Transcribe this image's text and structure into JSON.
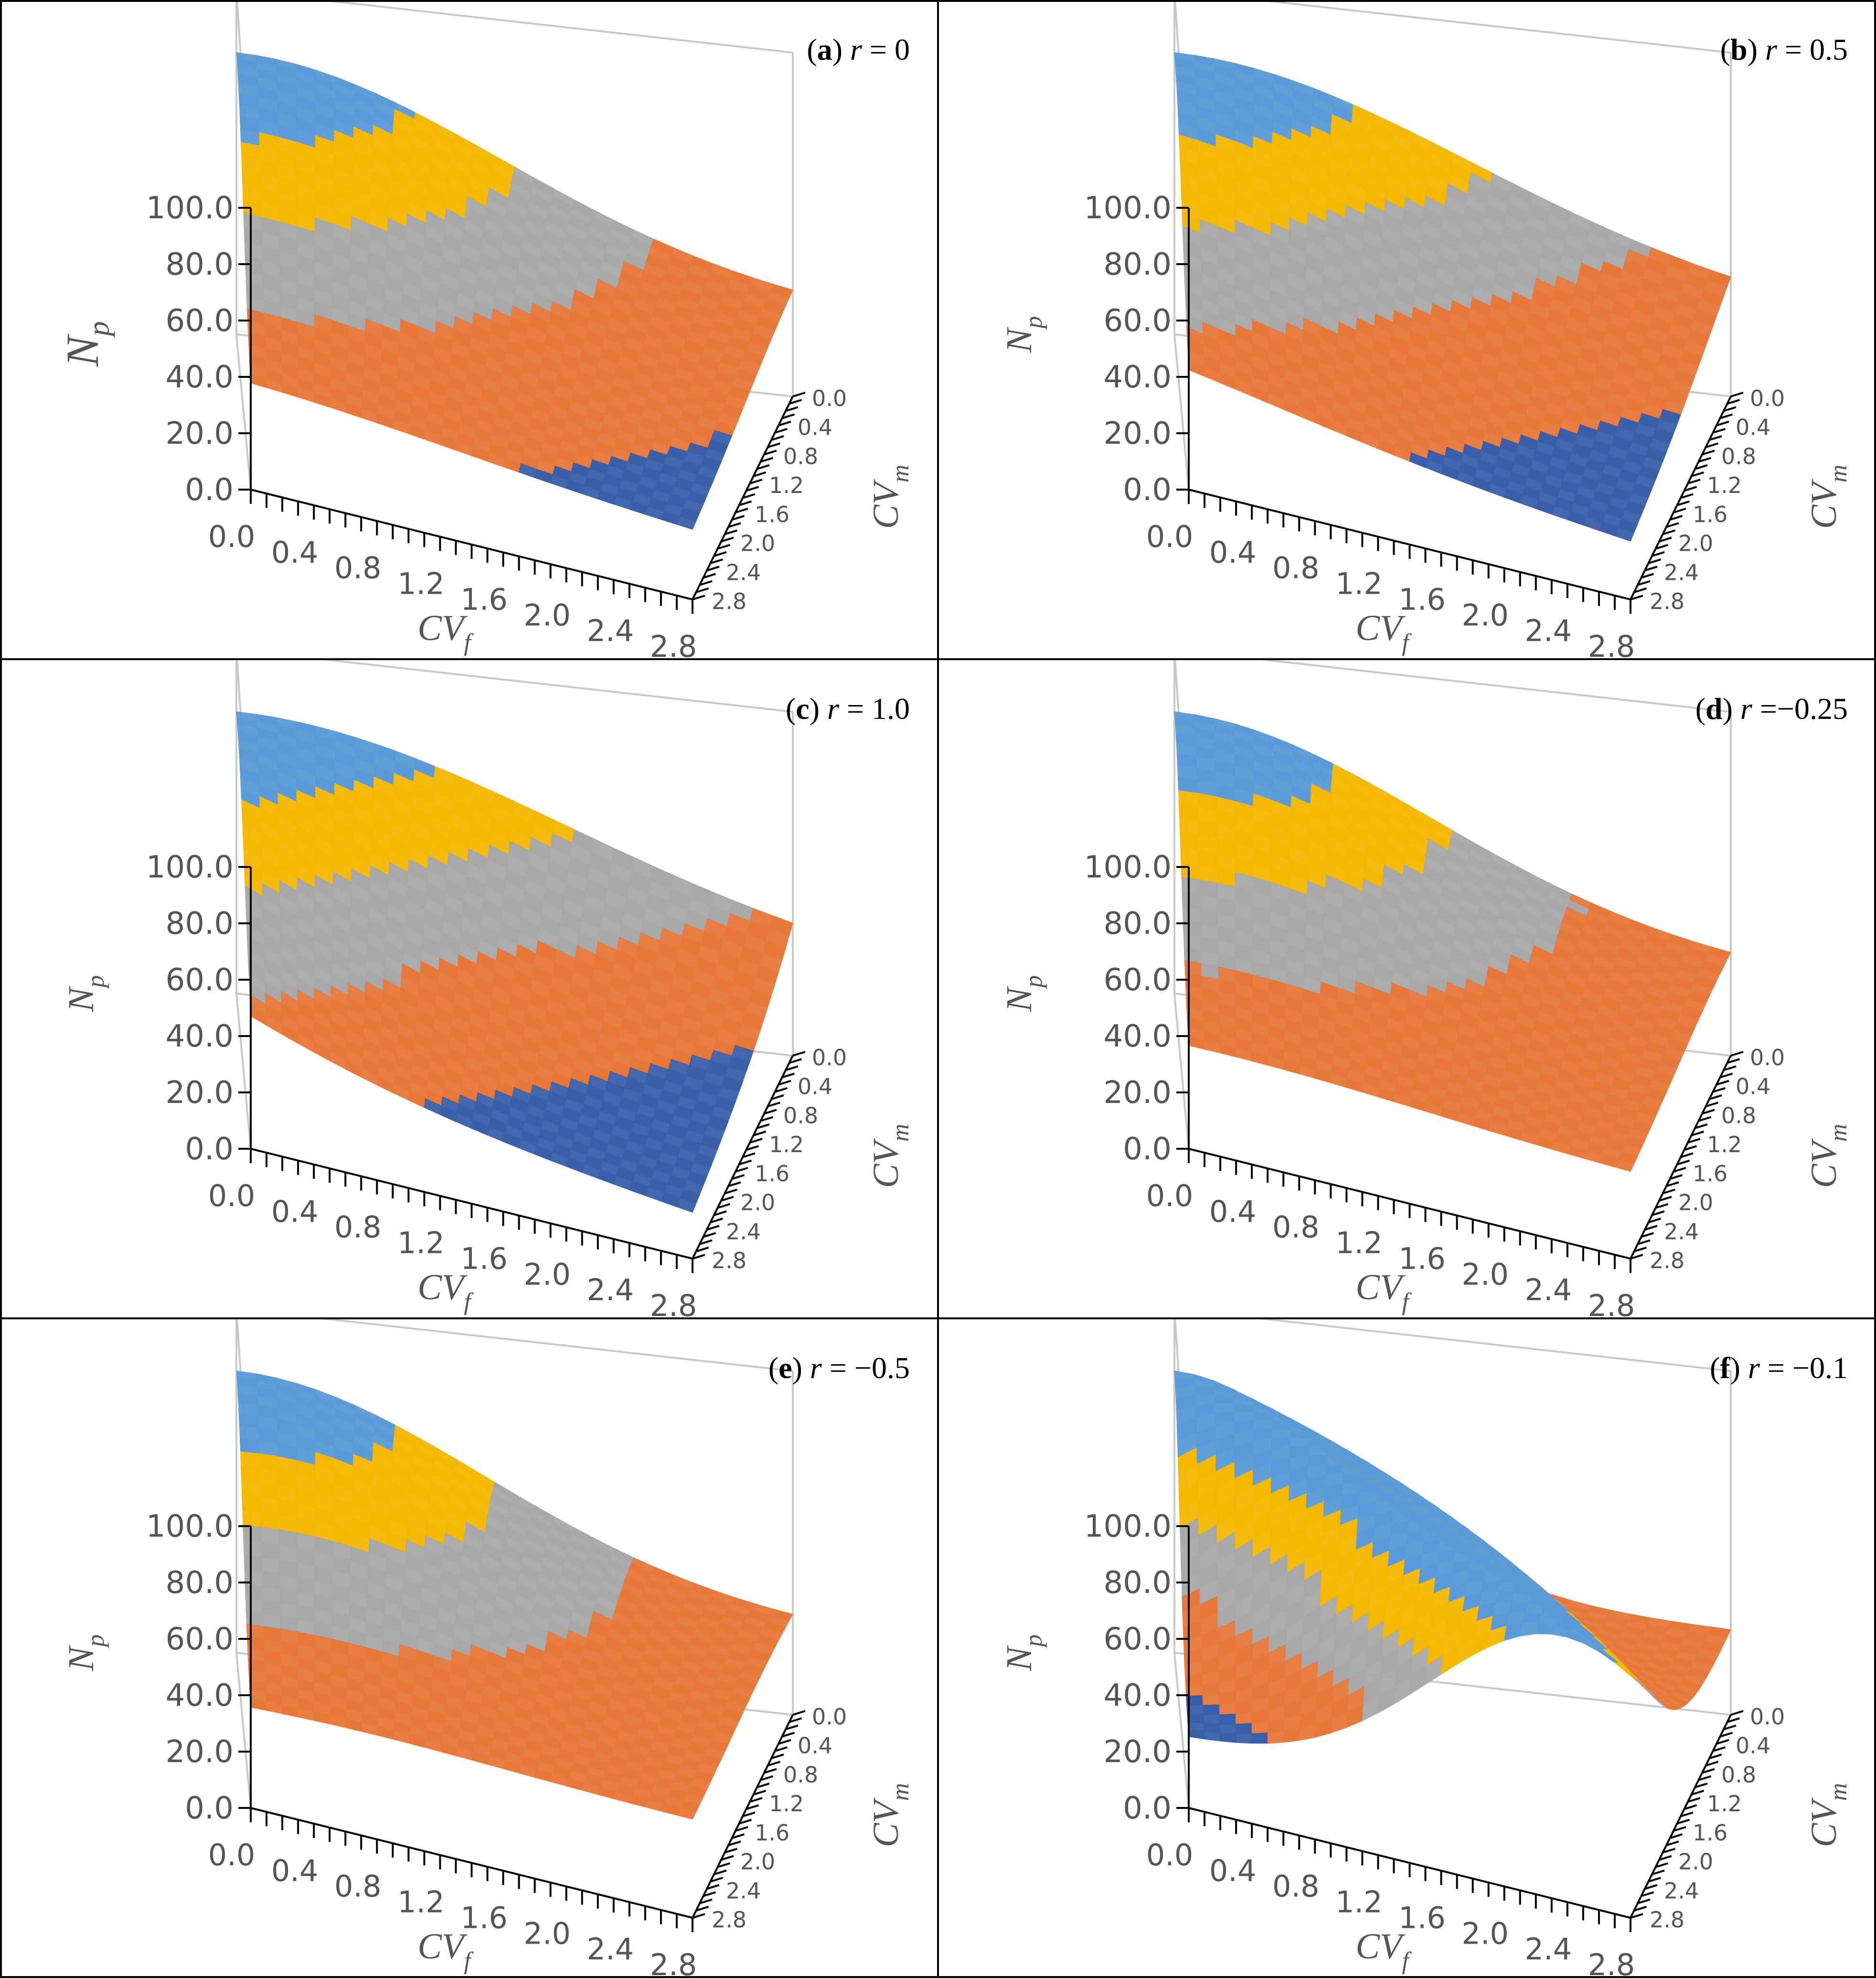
{
  "colors": {
    "blue": "#5a9ad8",
    "blue_deep": "#3a5ea8",
    "yellow": "#f4b800",
    "gray": "#a8a8a8",
    "orange": "#e8783a",
    "axis": "#000000",
    "box": "#c8c8c8",
    "tick_text": "#555555"
  },
  "chart_data": [
    {
      "id": "a",
      "type": "surface",
      "title": {
        "letter": "a",
        "label": "r = 0"
      },
      "zlabel": {
        "main": "N",
        "sub": "p"
      },
      "xlabel": {
        "main": "CV",
        "sub": "f"
      },
      "ylabel": {
        "main": "CV",
        "sub": "m"
      },
      "z_ticks": [
        "0.0",
        "20.0",
        "40.0",
        "60.0",
        "80.0",
        "100.0"
      ],
      "x_ticks": [
        "0.0",
        "0.4",
        "0.8",
        "1.2",
        "1.6",
        "2.0",
        "2.4",
        "2.8"
      ],
      "y_ticks": [
        "0.0",
        "0.4",
        "0.8",
        "1.2",
        "1.6",
        "2.0",
        "2.4",
        "2.8"
      ],
      "zlim": [
        0,
        100
      ],
      "r": 0
    },
    {
      "id": "b",
      "type": "surface",
      "title": {
        "letter": "b",
        "label": "r = 0.5"
      },
      "zlabel": {
        "main": "N",
        "sub": "p"
      },
      "xlabel": {
        "main": "CV",
        "sub": "f"
      },
      "ylabel": {
        "main": "CV",
        "sub": "m"
      },
      "z_ticks": [
        "0.0",
        "20.0",
        "40.0",
        "60.0",
        "80.0",
        "100.0"
      ],
      "x_ticks": [
        "0.0",
        "0.4",
        "0.8",
        "1.2",
        "1.6",
        "2.0",
        "2.4",
        "2.8"
      ],
      "y_ticks": [
        "0.0",
        "0.4",
        "0.8",
        "1.2",
        "1.6",
        "2.0",
        "2.4",
        "2.8"
      ],
      "zlim": [
        0,
        100
      ],
      "r": 0.5
    },
    {
      "id": "c",
      "type": "surface",
      "title": {
        "letter": "c",
        "label": "r = 1.0"
      },
      "zlabel": {
        "main": "N",
        "sub": "p"
      },
      "xlabel": {
        "main": "CV",
        "sub": "f"
      },
      "ylabel": {
        "main": "CV",
        "sub": "m"
      },
      "z_ticks": [
        "0.0",
        "20.0",
        "40.0",
        "60.0",
        "80.0",
        "100.0"
      ],
      "x_ticks": [
        "0.0",
        "0.4",
        "0.8",
        "1.2",
        "1.6",
        "2.0",
        "2.4",
        "2.8"
      ],
      "y_ticks": [
        "0.0",
        "0.4",
        "0.8",
        "1.2",
        "1.6",
        "2.0",
        "2.4",
        "2.8"
      ],
      "zlim": [
        0,
        100
      ],
      "r": 1.0
    },
    {
      "id": "d",
      "type": "surface",
      "title": {
        "letter": "d",
        "label": "r =−0.25"
      },
      "zlabel": {
        "main": "N",
        "sub": "p"
      },
      "xlabel": {
        "main": "CV",
        "sub": "f"
      },
      "ylabel": {
        "main": "CV",
        "sub": "m"
      },
      "z_ticks": [
        "0.0",
        "20.0",
        "40.0",
        "60.0",
        "80.0",
        "100.0"
      ],
      "x_ticks": [
        "0.0",
        "0.4",
        "0.8",
        "1.2",
        "1.6",
        "2.0",
        "2.4",
        "2.8"
      ],
      "y_ticks": [
        "0.0",
        "0.4",
        "0.8",
        "1.2",
        "1.6",
        "2.0",
        "2.4",
        "2.8"
      ],
      "zlim": [
        0,
        100
      ],
      "r": -0.25
    },
    {
      "id": "e",
      "type": "surface",
      "title": {
        "letter": "e",
        "label": "r = −0.5"
      },
      "zlabel": {
        "main": "N",
        "sub": "p"
      },
      "xlabel": {
        "main": "CV",
        "sub": "f"
      },
      "ylabel": {
        "main": "CV",
        "sub": "m"
      },
      "z_ticks": [
        "0.0",
        "20.0",
        "40.0",
        "60.0",
        "80.0",
        "100.0"
      ],
      "x_ticks": [
        "0.0",
        "0.4",
        "0.8",
        "1.2",
        "1.6",
        "2.0",
        "2.4",
        "2.8"
      ],
      "y_ticks": [
        "0.0",
        "0.4",
        "0.8",
        "1.2",
        "1.6",
        "2.0",
        "2.4",
        "2.8"
      ],
      "zlim": [
        0,
        100
      ],
      "r": -0.5
    },
    {
      "id": "f",
      "type": "surface",
      "title": {
        "letter": "f",
        "label": "r = −0.1"
      },
      "zlabel": {
        "main": "N",
        "sub": "p"
      },
      "xlabel": {
        "main": "CV",
        "sub": "f"
      },
      "ylabel": {
        "main": "CV",
        "sub": "m"
      },
      "z_ticks": [
        "0.0",
        "20.0",
        "40.0",
        "60.0",
        "80.0",
        "100.0"
      ],
      "x_ticks": [
        "0.0",
        "0.4",
        "0.8",
        "1.2",
        "1.6",
        "2.0",
        "2.4",
        "2.8"
      ],
      "y_ticks": [
        "0.0",
        "0.4",
        "0.8",
        "1.2",
        "1.6",
        "2.0",
        "2.4",
        "2.8"
      ],
      "zlim": [
        0,
        100
      ],
      "r": -0.1
    }
  ]
}
